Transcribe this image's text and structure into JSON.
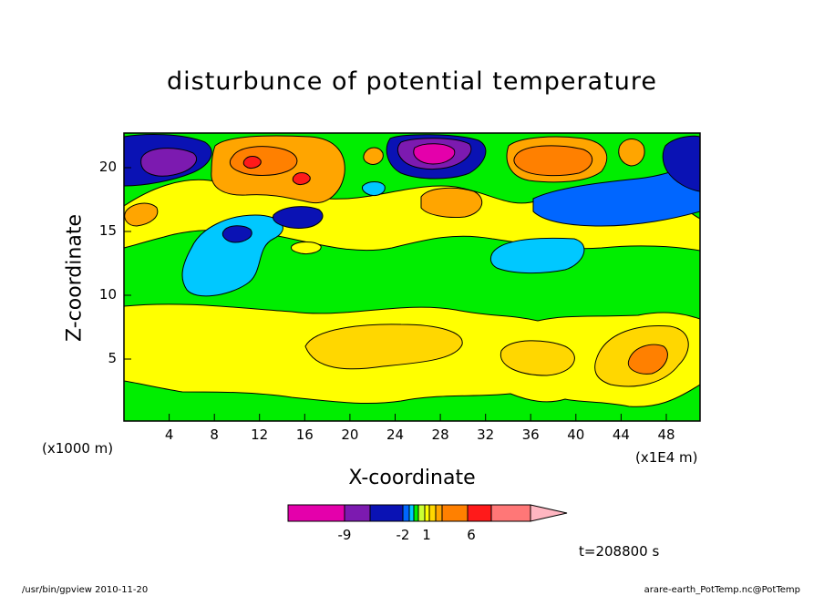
{
  "chart_data": {
    "type": "heatmap",
    "title": "disturbunce of potential temperature",
    "xlabel": "X-coordinate",
    "ylabel": "Z-coordinate",
    "x_units": "(x1E4 m)",
    "y_units": "(x1000 m)",
    "xlim": [
      0,
      51
    ],
    "ylim": [
      0,
      22.5
    ],
    "x_ticks": [
      "4",
      "8",
      "12",
      "16",
      "20",
      "24",
      "28",
      "32",
      "36",
      "40",
      "44",
      "48"
    ],
    "y_ticks": [
      "5",
      "10",
      "15",
      "20"
    ],
    "colorbar": {
      "labels": [
        "-9",
        "-2",
        "1",
        "6"
      ],
      "colors": [
        "#e400ab",
        "#7c1ab0",
        "#0a12b4",
        "#0066ff",
        "#00c8ff",
        "#00ee00",
        "#ccff33",
        "#ffff00",
        "#ffd700",
        "#ffa500",
        "#ff8000",
        "#ff1a1a",
        "#ff7777",
        "#ffb6c1"
      ]
    },
    "time": "t=208800 s",
    "features": [
      {
        "type": "positive-maximum",
        "x": 37,
        "z": 20.5,
        "value": 6
      },
      {
        "type": "positive-maximum",
        "x": 12.5,
        "z": 20.5,
        "value": 6
      },
      {
        "type": "positive-maximum",
        "x": 15.5,
        "z": 19.2,
        "value": 7
      },
      {
        "type": "positive-maximum",
        "x": 45,
        "z": 5,
        "value": 3
      },
      {
        "type": "positive-maximum",
        "x": 24,
        "z": 5.7,
        "value": 2
      },
      {
        "type": "negative-minimum",
        "x": 28,
        "z": 21,
        "value": -10
      },
      {
        "type": "negative-minimum",
        "x": 3.5,
        "z": 20.5,
        "value": -9
      },
      {
        "type": "negative-minimum",
        "x": 16,
        "z": 16.5,
        "value": -6
      },
      {
        "type": "negative-minimum",
        "x": 11,
        "z": 14.8,
        "value": -5
      },
      {
        "type": "negative-region",
        "x": 11,
        "z": 13,
        "value": -2
      }
    ]
  },
  "footer": {
    "left": "/usr/bin/gpview  2010-11-20",
    "right": "arare-earth_PotTemp.nc@PotTemp"
  }
}
